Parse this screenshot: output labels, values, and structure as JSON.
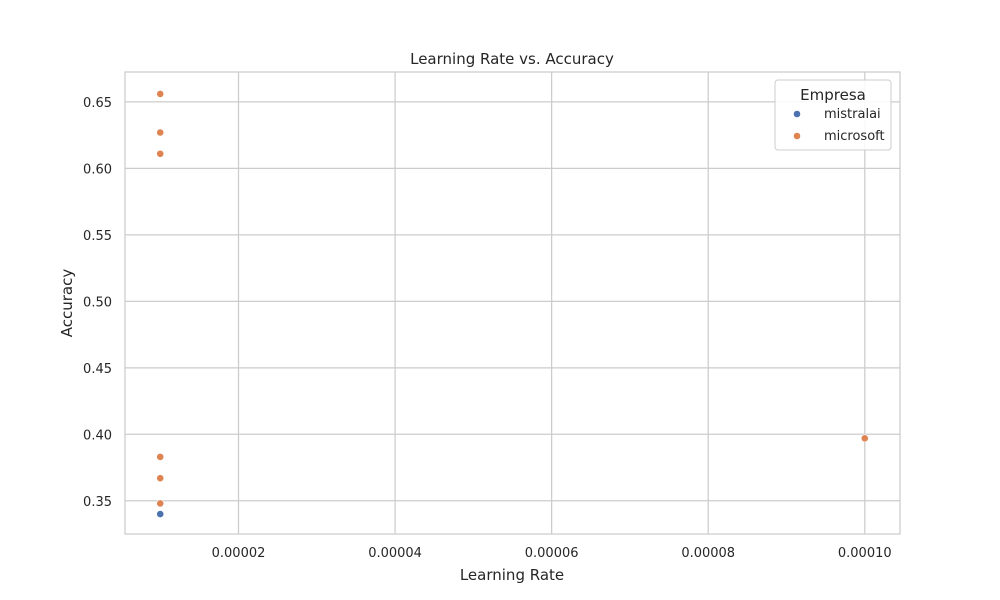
{
  "chart_data": {
    "type": "scatter",
    "title": "Learning Rate vs. Accuracy",
    "xlabel": "Learning Rate",
    "ylabel": "Accuracy",
    "xlim": [
      5.5e-06,
      0.0001045
    ],
    "ylim": [
      0.325,
      0.6725
    ],
    "x_ticks": [
      2e-05,
      4e-05,
      6e-05,
      8e-05,
      0.0001
    ],
    "x_tick_labels": [
      "0.00002",
      "0.00004",
      "0.00006",
      "0.00008",
      "0.00010"
    ],
    "y_ticks": [
      0.35,
      0.4,
      0.45,
      0.5,
      0.55,
      0.6,
      0.65
    ],
    "y_tick_labels": [
      "0.35",
      "0.40",
      "0.45",
      "0.50",
      "0.55",
      "0.60",
      "0.65"
    ],
    "grid": true,
    "legend": {
      "title": "Empresa",
      "placement": "top-right"
    },
    "series": [
      {
        "name": "mistralai",
        "color": "#4c72b0",
        "points": [
          {
            "x": 1e-05,
            "y": 0.34
          }
        ]
      },
      {
        "name": "microsoft",
        "color": "#dd8452",
        "points": [
          {
            "x": 1e-05,
            "y": 0.656
          },
          {
            "x": 1e-05,
            "y": 0.627
          },
          {
            "x": 1e-05,
            "y": 0.611
          },
          {
            "x": 1e-05,
            "y": 0.383
          },
          {
            "x": 1e-05,
            "y": 0.367
          },
          {
            "x": 1e-05,
            "y": 0.348
          },
          {
            "x": 0.0001,
            "y": 0.397
          }
        ]
      }
    ]
  }
}
